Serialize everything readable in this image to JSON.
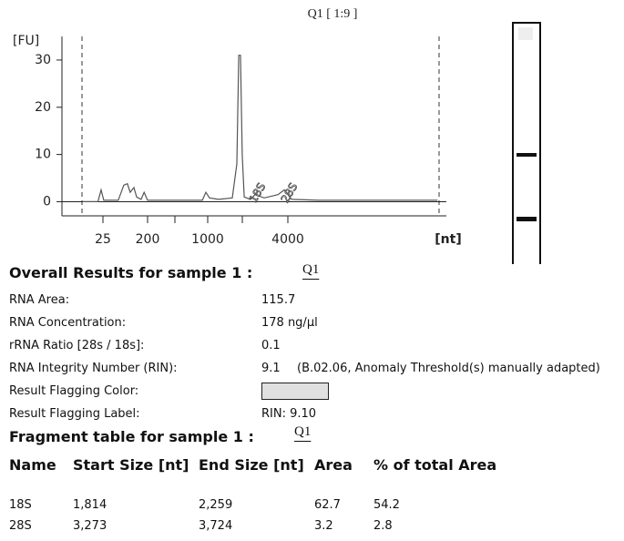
{
  "chart_data": {
    "type": "line",
    "title": "Q1 [ 1:9 ]",
    "y_label": "[FU]",
    "x_label": "[nt]",
    "x": [
      10,
      20,
      23,
      26,
      51,
      66,
      78,
      89,
      106,
      120,
      148,
      170,
      200,
      505,
      865,
      953,
      1032,
      1208,
      1531,
      1655,
      1710,
      1763,
      1818,
      1880,
      2098,
      2270,
      2655,
      3368,
      3760,
      4270,
      6840,
      53100
    ],
    "series": [
      {
        "name": "Q1",
        "color": "#555555",
        "values": [
          0,
          0,
          2.5,
          0.3,
          0.3,
          3.5,
          3.8,
          2,
          3,
          1,
          0.5,
          2,
          0.3,
          0.3,
          0.3,
          2,
          0.8,
          0.5,
          0.8,
          8,
          31,
          31,
          10,
          1,
          0.5,
          1.5,
          0.8,
          1.5,
          2.5,
          0.5,
          0.3,
          0.3
        ]
      }
    ],
    "xlim": [
      4,
      62000
    ],
    "xticks": [
      25,
      200,
      1000,
      4000
    ],
    "ylim": [
      -3,
      35
    ],
    "yticks": [
      0,
      10,
      20,
      30
    ],
    "annotations": [
      "18S",
      "28S"
    ]
  },
  "overall": {
    "title": "Overall Results for sample 1  :",
    "sample": "Q1",
    "rows": [
      {
        "label": "RNA Area:",
        "value": "115.7"
      },
      {
        "label": "RNA Concentration:",
        "value": "178 ng/µl"
      },
      {
        "label": "rRNA Ratio [28s / 18s]:",
        "value": "0.1"
      },
      {
        "label": "RNA Integrity Number (RIN):",
        "value": "9.1",
        "note": "(B.02.06, Anomaly Threshold(s) manually adapted)"
      },
      {
        "label": "Result Flagging Color:"
      },
      {
        "label": "Result Flagging Label:",
        "value": "RIN: 9.10"
      }
    ]
  },
  "fragments": {
    "title": "Fragment table for sample 1  :",
    "sample": "Q1",
    "columns": [
      "Name",
      "Start Size [nt]",
      "End Size [nt]",
      "Area",
      "% of total Area"
    ],
    "rows": [
      [
        "18S",
        "1,814",
        "2,259",
        "62.7",
        "54.2"
      ],
      [
        "28S",
        "3,273",
        "3,724",
        "3.2",
        "2.8"
      ]
    ]
  }
}
